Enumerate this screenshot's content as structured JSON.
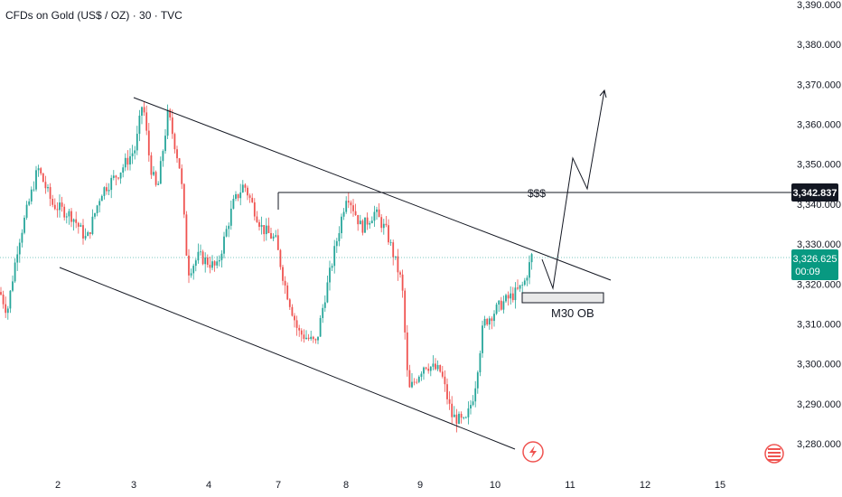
{
  "header": {
    "title": "CFDs on Gold (US$ / OZ) · 30 · TVC"
  },
  "chart_data": {
    "type": "candlestick",
    "title": "CFDs on Gold (US$ / OZ) · 30 · TVC",
    "ylim": [
      3275,
      3390
    ],
    "y_ticks": [
      "3,390.000",
      "3,380.000",
      "3,370.000",
      "3,360.000",
      "3,350.000",
      "3,340.000",
      "3,330.000",
      "3,320.000",
      "3,310.000",
      "3,300.000",
      "3,290.000",
      "3,280.000"
    ],
    "x_ticks": [
      "2",
      "3",
      "4",
      "7",
      "8",
      "9",
      "10",
      "11",
      "12",
      "15"
    ],
    "last_price": "3,326.625",
    "countdown": "00:09",
    "level_price": "3,342.837",
    "annotations": {
      "liquidity": "$$$",
      "order_block": "M30 OB"
    },
    "colors": {
      "up": "#26a69a",
      "down": "#ef5350",
      "last_price_tag": "#089981",
      "level_tag": "#131722"
    },
    "key_points": [
      {
        "x": "1",
        "y": 3316
      },
      {
        "x": "2",
        "y": 3341
      },
      {
        "x": "3",
        "y": 3366
      },
      {
        "x": "4",
        "y": 3324
      },
      {
        "x": "7",
        "y": 3343
      },
      {
        "x": "7",
        "y": 3305
      },
      {
        "x": "8",
        "y": 3345
      },
      {
        "x": "9",
        "y": 3290
      },
      {
        "x": "10",
        "y": 3285
      },
      {
        "x": "10",
        "y": 3328
      }
    ]
  }
}
